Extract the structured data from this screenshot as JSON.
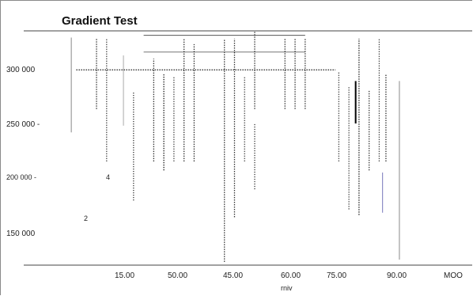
{
  "chart_data": {
    "type": "line",
    "title": "Gradient Test",
    "xlabel": "rniv",
    "ylabel": "",
    "x_ticks": [
      "15.00",
      "50.00",
      "45.00",
      "60.00",
      "75.00",
      "90.00",
      "MOO"
    ],
    "y_ticks": [
      "300 000",
      "250 000 -",
      "200 000 -",
      "150 000"
    ],
    "xlim": [
      0,
      110
    ],
    "ylim": [
      125000,
      335000
    ],
    "point_labels": [
      {
        "text": "4",
        "x": 10,
        "y": 200000
      },
      {
        "text": "2",
        "x": 4,
        "y": 162000
      }
    ],
    "horizontal_lines": [
      {
        "x1": 2,
        "x2": 79,
        "y": 300000,
        "style": "dotted",
        "color": "#111111"
      },
      {
        "x1": 22,
        "x2": 70,
        "y": 331000,
        "style": "solid",
        "color": "#555555"
      },
      {
        "x1": 22,
        "x2": 70,
        "y": 316000,
        "style": "solid",
        "color": "#777777"
      }
    ],
    "vertical_lines": [
      {
        "x": 0.5,
        "y1": 244000,
        "y2": 329000,
        "style": "solid",
        "color": "#888888"
      },
      {
        "x": 8,
        "y1": 265000,
        "y2": 328000,
        "style": "dotted",
        "color": "#111111"
      },
      {
        "x": 11,
        "y1": 218000,
        "y2": 328000,
        "style": "dotted",
        "color": "#333333"
      },
      {
        "x": 16,
        "y1": 250000,
        "y2": 313000,
        "style": "solid",
        "color": "#aaaaaa"
      },
      {
        "x": 19,
        "y1": 183000,
        "y2": 280000,
        "style": "dotted",
        "color": "#333333"
      },
      {
        "x": 25,
        "y1": 218000,
        "y2": 310000,
        "style": "dotted",
        "color": "#111111"
      },
      {
        "x": 28,
        "y1": 210000,
        "y2": 296000,
        "style": "dotted",
        "color": "#111111"
      },
      {
        "x": 31,
        "y1": 218000,
        "y2": 294000,
        "style": "dotted",
        "color": "#333333"
      },
      {
        "x": 34,
        "y1": 218000,
        "y2": 328000,
        "style": "dotted",
        "color": "#111111"
      },
      {
        "x": 37,
        "y1": 218000,
        "y2": 323000,
        "style": "dotted",
        "color": "#111111"
      },
      {
        "x": 46,
        "y1": 128000,
        "y2": 328000,
        "style": "dotted",
        "color": "#111111"
      },
      {
        "x": 49,
        "y1": 168000,
        "y2": 328000,
        "style": "dotted",
        "color": "#111111"
      },
      {
        "x": 52,
        "y1": 218000,
        "y2": 294000,
        "style": "dotted",
        "color": "#333333"
      },
      {
        "x": 55,
        "y1": 193000,
        "y2": 252000,
        "style": "dotted",
        "color": "#333333"
      },
      {
        "x": 55,
        "y1": 265000,
        "y2": 334000,
        "style": "dotted",
        "color": "#111111"
      },
      {
        "x": 64,
        "y1": 265000,
        "y2": 328000,
        "style": "dotted",
        "color": "#111111"
      },
      {
        "x": 67,
        "y1": 265000,
        "y2": 328000,
        "style": "dotted",
        "color": "#111111"
      },
      {
        "x": 70,
        "y1": 265000,
        "y2": 328000,
        "style": "dotted",
        "color": "#111111"
      },
      {
        "x": 80,
        "y1": 218000,
        "y2": 298000,
        "style": "dotted",
        "color": "#333333"
      },
      {
        "x": 83,
        "y1": 175000,
        "y2": 285000,
        "style": "dotted",
        "color": "#333333"
      },
      {
        "x": 85,
        "y1": 252000,
        "y2": 290000,
        "style": "solid",
        "color": "#000000",
        "width": 2
      },
      {
        "x": 86,
        "y1": 170000,
        "y2": 328000,
        "style": "dotted",
        "color": "#111111"
      },
      {
        "x": 89,
        "y1": 210000,
        "y2": 282000,
        "style": "dotted",
        "color": "#333333"
      },
      {
        "x": 92,
        "y1": 218000,
        "y2": 328000,
        "style": "dotted",
        "color": "#333333"
      },
      {
        "x": 93,
        "y1": 172000,
        "y2": 208000,
        "style": "solid",
        "color": "#7777bb"
      },
      {
        "x": 94,
        "y1": 218000,
        "y2": 296000,
        "style": "dotted",
        "color": "#111111"
      },
      {
        "x": 98,
        "y1": 130000,
        "y2": 290000,
        "style": "solid",
        "color": "#888888"
      }
    ]
  }
}
